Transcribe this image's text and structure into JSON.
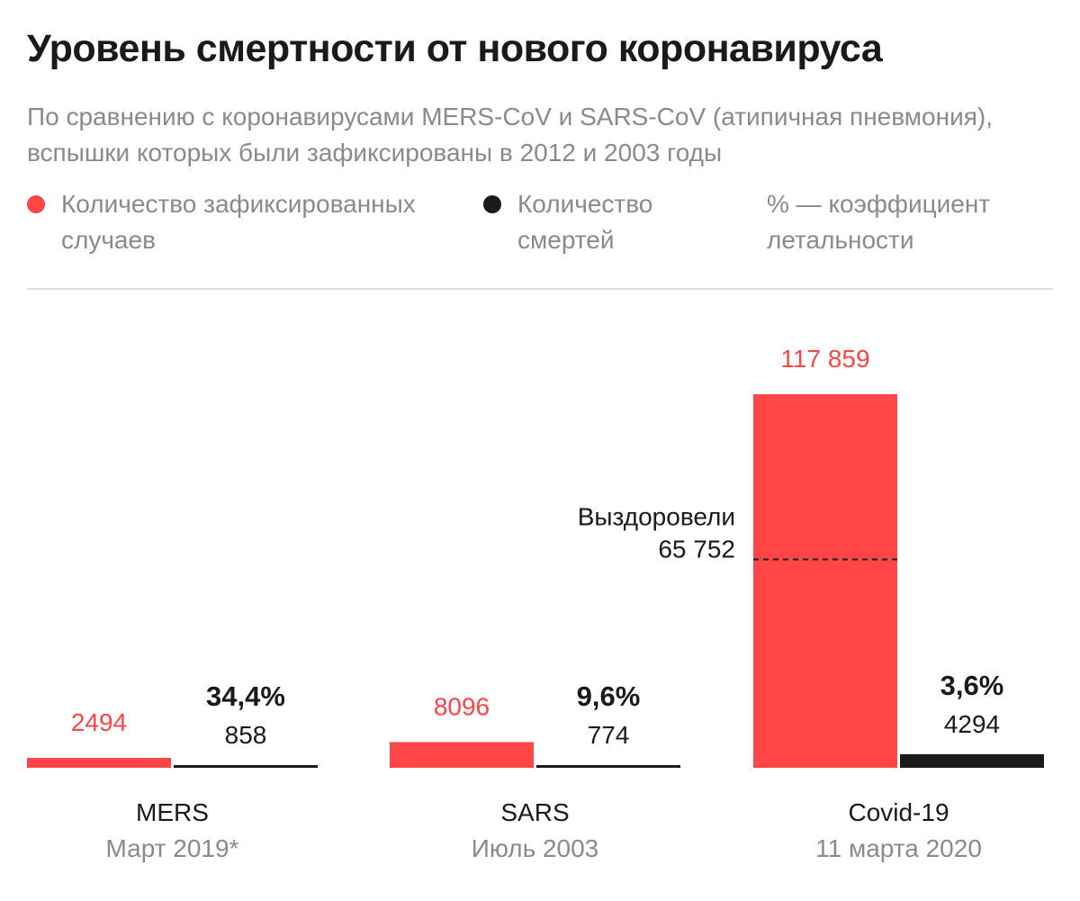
{
  "header": {
    "title": "Уровень смертности от нового коронавируса",
    "subtitle": "По сравнению с коронавирусами MERS-CoV и SARS-CoV (атипичная пневмония), вспышки которых были зафиксированы в 2012 и 2003 годы"
  },
  "legend": {
    "cases": {
      "label": "Количество зафиксированных случаев",
      "color": "#ff4545"
    },
    "deaths": {
      "label": "Количество смертей",
      "color": "#1a1a1a"
    },
    "rate": {
      "label": "% — коэффициент летальности"
    }
  },
  "chart_data": {
    "type": "bar",
    "title": "Уровень смертности от нового коронавируса",
    "xlabel": "",
    "ylabel": "",
    "ylim": [
      0,
      117859
    ],
    "categories": [
      "MERS",
      "SARS",
      "Covid-19"
    ],
    "dates": [
      "Март 2019*",
      "Июль 2003",
      "11 марта 2020"
    ],
    "series": [
      {
        "name": "Количество зафиксированных случаев",
        "color": "#ff4545",
        "values": [
          2494,
          8096,
          117859
        ],
        "labels": [
          "2494",
          "8096",
          "117 859"
        ]
      },
      {
        "name": "Количество смертей",
        "color": "#1a1a1a",
        "values": [
          858,
          774,
          4294
        ],
        "labels": [
          "858",
          "774",
          "4294"
        ]
      }
    ],
    "fatality_rates": [
      "34,4%",
      "9,6%",
      "3,6%"
    ],
    "annotation": {
      "category": "Covid-19",
      "label": "Выздоровели",
      "value": 65752,
      "value_label": "65 752"
    }
  }
}
